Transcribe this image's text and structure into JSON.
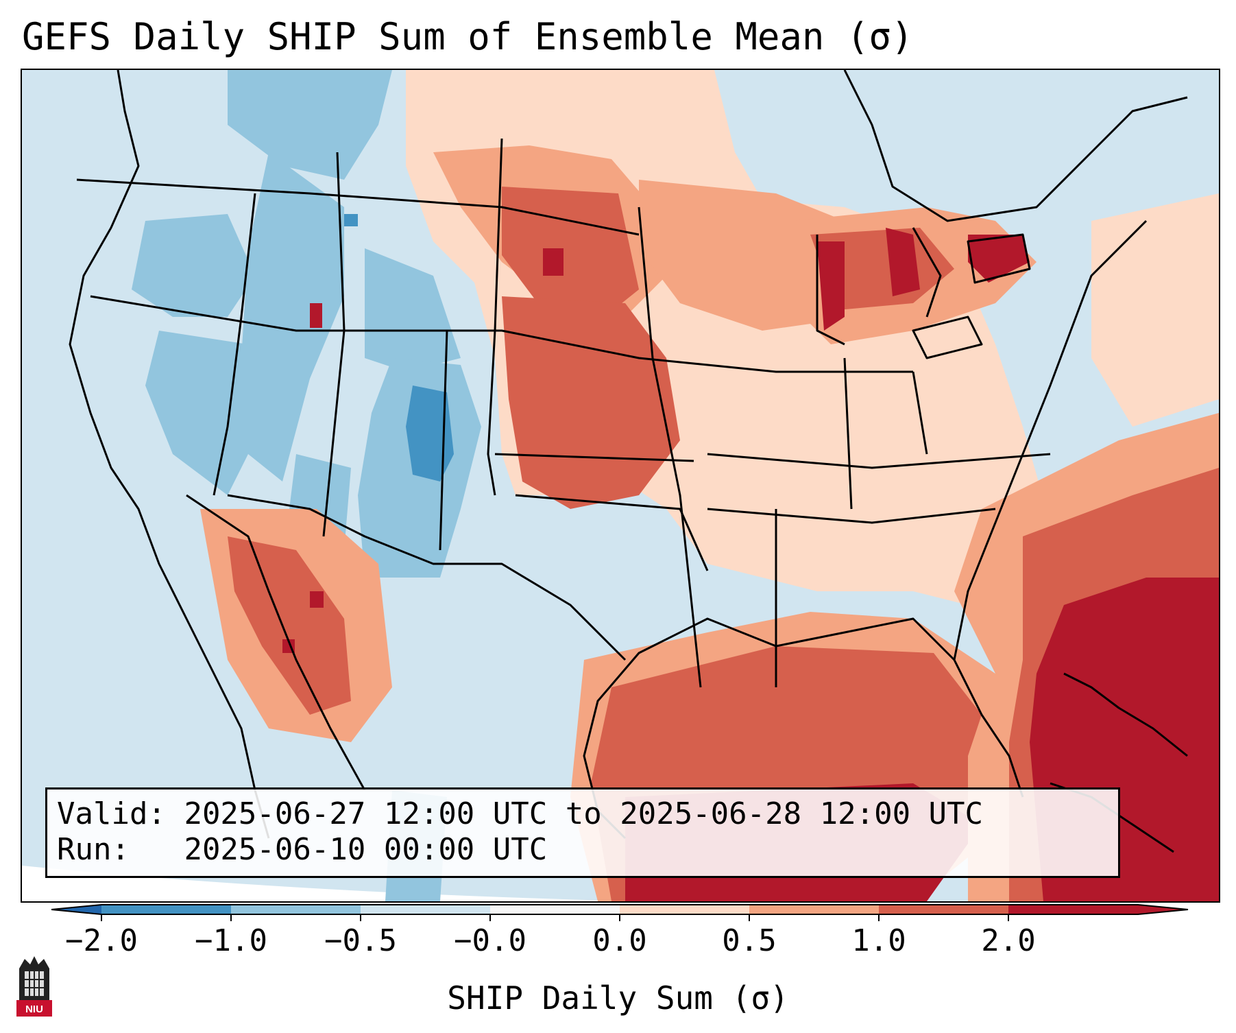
{
  "title": "GEFS Daily SHIP Sum of Ensemble Mean (σ)",
  "info": {
    "valid_label": "Valid:",
    "valid_value": "2025-06-27 12:00 UTC to 2025-06-28 12:00 UTC",
    "run_label": "Run:",
    "run_value": "2025-06-10 00:00 UTC"
  },
  "colorbar": {
    "label": "SHIP Daily Sum (σ)",
    "ticks": [
      "−2.0",
      "−1.0",
      "−0.5",
      "−0.0",
      "0.0",
      "0.5",
      "1.0",
      "2.0"
    ],
    "colors": [
      "#4393c3",
      "#92c5de",
      "#d1e5f0",
      "#f7f7f7",
      "#fddbc7",
      "#f4a582",
      "#d6604d",
      "#b2182b"
    ],
    "under_color": "#2166ac",
    "over_color": "#b2182b"
  },
  "logo": {
    "text": "NIU"
  },
  "colors": {
    "very_neg": "#4393c3",
    "neg": "#92c5de",
    "slight_neg": "#d1e5f0",
    "neutral": "#f7f7f7",
    "slight_pos": "#fddbc7",
    "pos": "#f4a582",
    "strong_pos": "#d6604d",
    "very_pos": "#b2182b"
  }
}
